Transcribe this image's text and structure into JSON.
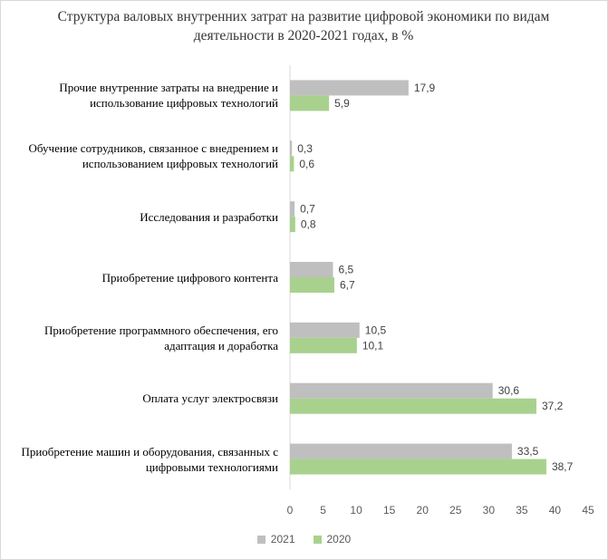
{
  "chart_data": {
    "type": "bar",
    "orientation": "horizontal",
    "title": "Структура валовых внутренних затрат на развитие цифровой экономики по видам деятельности в 2020-2021 годах, в %",
    "categories": [
      "Прочие внутренние затраты на внедрение и использование цифровых технологий",
      "Обучение сотрудников, связанное с внедрением и использованием цифровых технологий",
      "Исследования и разработки",
      "Приобретение цифрового контента",
      "Приобретение программного обеспечения, его адаптация и доработка",
      "Оплата услуг электросвязи",
      "Приобретение машин и оборудования, связанных с цифровыми технологиями"
    ],
    "series": [
      {
        "name": "2021",
        "color": "#bfbfbf",
        "values": [
          17.9,
          0.3,
          0.7,
          6.5,
          10.5,
          30.6,
          33.5
        ],
        "labels": [
          "17,9",
          "0,3",
          "0,7",
          "6,5",
          "10,5",
          "30,6",
          "33,5"
        ]
      },
      {
        "name": "2020",
        "color": "#a9d18e",
        "values": [
          5.9,
          0.6,
          0.8,
          6.7,
          10.1,
          37.2,
          38.7
        ],
        "labels": [
          "5,9",
          "0,6",
          "0,8",
          "6,7",
          "10,1",
          "37,2",
          "38,7"
        ]
      }
    ],
    "xlim": [
      0,
      45
    ],
    "xticks": [
      0,
      5,
      10,
      15,
      20,
      25,
      30,
      35,
      40,
      45
    ],
    "grid": false,
    "legend_position": "bottom"
  }
}
